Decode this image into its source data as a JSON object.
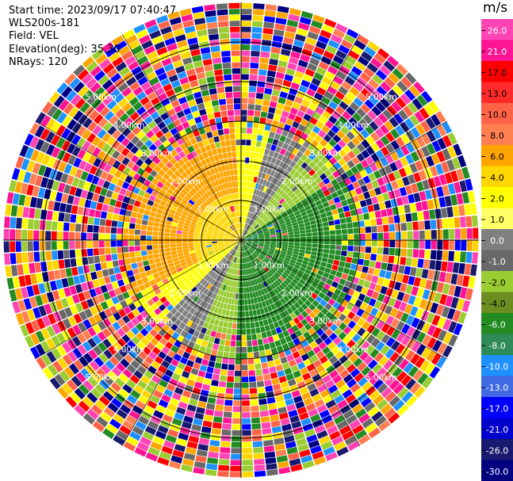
{
  "header": {
    "start_time": "Start time: 2023/09/17 07:40:47",
    "instrument": "WLS200s-181",
    "field": "Field: VEL",
    "elevation": "Elevation(deg): 35.30",
    "nrays": "NRays: 120"
  },
  "colorbar": {
    "unit": "m/s",
    "ticks": [
      "26.0",
      "21.0",
      "17.0",
      "13.0",
      "10.0",
      "8.0",
      "6.0",
      "4.0",
      "2.0",
      "1.0",
      "0.0",
      "-1.0",
      "-2.0",
      "-4.0",
      "-6.0",
      "-8.0",
      "-10.0",
      "-13.0",
      "-17.0",
      "-21.0",
      "-26.0",
      "-30.0"
    ],
    "colors": [
      "#ff44b4",
      "#ff1493",
      "#ff0000",
      "#ff2a2a",
      "#ff6347",
      "#ff7f50",
      "#ffa500",
      "#ffd700",
      "#ffff00",
      "#ffff66",
      "#808080",
      "#696969",
      "#9acd32",
      "#6b8e23",
      "#228b22",
      "#2e8b57",
      "#1e90ff",
      "#4169e1",
      "#0000ff",
      "#0000cd",
      "#191970",
      "#000080"
    ]
  },
  "chart_data": {
    "type": "ppi",
    "field": "VEL",
    "units": "m/s",
    "elevation_deg": 35.3,
    "nrays": 120,
    "range_rings_km": [
      1.0,
      2.0,
      3.0,
      4.0,
      5.0
    ],
    "ring_labels": [
      "1.00km",
      "2.00km",
      "3.00km",
      "4.00km",
      "5.00km"
    ],
    "max_range_km": 6.0,
    "value_min": -30.0,
    "value_max": 26.0,
    "pattern": {
      "description_of_field": "positive velocities (yellow/orange) toward north-west, negative (green) toward south-east, noisy multicolor beyond ~3 km",
      "signal_range_km": 3.0
    }
  }
}
